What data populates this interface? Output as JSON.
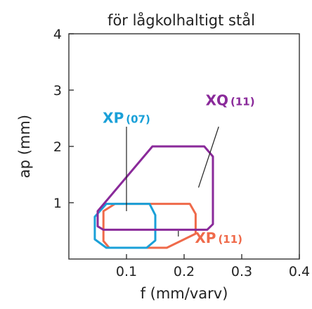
{
  "chart_data": {
    "type": "area",
    "title": "för lågkolhaltigt stål",
    "xlabel": "f (mm/varv)",
    "ylabel": "ap (mm)",
    "xlim": [
      0,
      0.4
    ],
    "ylim": [
      0,
      4
    ],
    "x_ticks": [
      {
        "value": 0.1,
        "label": "0.1"
      },
      {
        "value": 0.2,
        "label": "0.2"
      },
      {
        "value": 0.3,
        "label": "0.3"
      },
      {
        "value": 0.4,
        "label": "0.4"
      }
    ],
    "y_ticks": [
      {
        "value": 1,
        "label": "1"
      },
      {
        "value": 2,
        "label": "2"
      },
      {
        "value": 3,
        "label": "3"
      },
      {
        "value": 4,
        "label": "4"
      }
    ],
    "grid": false,
    "series": [
      {
        "name_main": "XP",
        "name_sub": "(11)",
        "color": "#ef6a4a",
        "points": [
          [
            0.06,
            0.32
          ],
          [
            0.07,
            0.2
          ],
          [
            0.17,
            0.2
          ],
          [
            0.22,
            0.45
          ],
          [
            0.22,
            0.8
          ],
          [
            0.21,
            0.98
          ],
          [
            0.08,
            0.98
          ],
          [
            0.06,
            0.85
          ]
        ]
      },
      {
        "name_main": "XP",
        "name_sub": "(07)",
        "color": "#1aa0d8",
        "points": [
          [
            0.065,
            0.2
          ],
          [
            0.135,
            0.2
          ],
          [
            0.15,
            0.33
          ],
          [
            0.15,
            0.78
          ],
          [
            0.14,
            0.98
          ],
          [
            0.065,
            0.98
          ],
          [
            0.045,
            0.75
          ],
          [
            0.045,
            0.35
          ]
        ]
      },
      {
        "name_main": "XQ",
        "name_sub": "(11)",
        "color": "#8a2a9a",
        "points": [
          [
            0.06,
            0.52
          ],
          [
            0.24,
            0.52
          ],
          [
            0.25,
            0.62
          ],
          [
            0.25,
            1.82
          ],
          [
            0.235,
            2.0
          ],
          [
            0.145,
            2.0
          ],
          [
            0.05,
            0.85
          ],
          [
            0.05,
            0.58
          ]
        ]
      }
    ],
    "annotations": [
      {
        "series": 0,
        "label_at": [
          0.19,
          0.4
        ],
        "leader_to": [
          0.19,
          0.5
        ],
        "label_pos": [
          0.26,
          0.29
        ]
      },
      {
        "series": 1,
        "label_at": [
          0.1,
          2.35
        ],
        "leader_to": [
          0.1,
          0.85
        ],
        "label_pos": [
          0.1,
          2.42
        ]
      },
      {
        "series": 2,
        "label_at": [
          0.26,
          2.35
        ],
        "leader_to": [
          0.225,
          1.27
        ],
        "label_pos": [
          0.28,
          2.73
        ]
      }
    ]
  }
}
